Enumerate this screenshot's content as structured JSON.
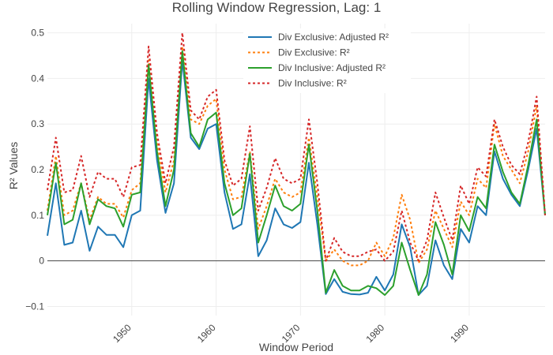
{
  "chart_data": {
    "type": "line",
    "title": "Rolling Window Regression, Lag: 1",
    "xlabel": "Window Period",
    "ylabel": "R² Values",
    "xlim": [
      1940,
      1999
    ],
    "ylim": [
      -0.12,
      0.52
    ],
    "x_ticks": [
      1950,
      1960,
      1970,
      1980,
      1990
    ],
    "x_tick_labels": [
      "1950",
      "1960",
      "1970",
      "1980",
      "1990"
    ],
    "y_ticks": [
      -0.1,
      0,
      0.1,
      0.2,
      0.3,
      0.4,
      0.5
    ],
    "y_tick_labels": [
      "−0.1",
      "0",
      "0.1",
      "0.2",
      "0.3",
      "0.4",
      "0.5"
    ],
    "grid": true,
    "legend_position": "top-right",
    "x": [
      1940,
      1941,
      1942,
      1943,
      1944,
      1945,
      1946,
      1947,
      1948,
      1949,
      1950,
      1951,
      1952,
      1953,
      1954,
      1955,
      1956,
      1957,
      1958,
      1959,
      1960,
      1961,
      1962,
      1963,
      1964,
      1965,
      1966,
      1967,
      1968,
      1969,
      1970,
      1971,
      1972,
      1973,
      1974,
      1975,
      1976,
      1977,
      1978,
      1979,
      1980,
      1981,
      1982,
      1983,
      1984,
      1985,
      1986,
      1987,
      1988,
      1989,
      1990,
      1991,
      1992,
      1993,
      1994,
      1995,
      1996,
      1997,
      1998,
      1999
    ],
    "series": [
      {
        "name": "Div Exclusive: Adjusted R²",
        "color": "#1f77b4",
        "dash": "solid",
        "values": [
          0.055,
          0.17,
          0.035,
          0.04,
          0.11,
          0.022,
          0.075,
          0.057,
          0.057,
          0.03,
          0.1,
          0.11,
          0.4,
          0.22,
          0.105,
          0.17,
          0.44,
          0.27,
          0.245,
          0.29,
          0.3,
          0.15,
          0.07,
          0.08,
          0.19,
          0.01,
          0.045,
          0.115,
          0.08,
          0.072,
          0.085,
          0.215,
          0.08,
          -0.073,
          -0.04,
          -0.068,
          -0.073,
          -0.074,
          -0.07,
          -0.035,
          -0.065,
          -0.03,
          0.08,
          0.03,
          -0.075,
          -0.055,
          0.045,
          -0.01,
          -0.04,
          0.07,
          0.04,
          0.12,
          0.1,
          0.24,
          0.18,
          0.145,
          0.12,
          0.2,
          0.29,
          0.1
        ]
      },
      {
        "name": "Div Exclusive: R²",
        "color": "#ff7f0e",
        "dash": "dot",
        "values": [
          0.11,
          0.23,
          0.1,
          0.11,
          0.17,
          0.09,
          0.14,
          0.125,
          0.125,
          0.095,
          0.155,
          0.17,
          0.44,
          0.26,
          0.15,
          0.22,
          0.47,
          0.31,
          0.3,
          0.34,
          0.355,
          0.2,
          0.135,
          0.14,
          0.24,
          0.07,
          0.12,
          0.18,
          0.15,
          0.14,
          0.15,
          0.27,
          0.14,
          0.0,
          0.025,
          0.0,
          -0.01,
          -0.01,
          0.0,
          0.04,
          0.01,
          0.05,
          0.145,
          0.09,
          -0.005,
          0.025,
          0.11,
          0.07,
          0.03,
          0.13,
          0.1,
          0.18,
          0.16,
          0.3,
          0.23,
          0.2,
          0.17,
          0.24,
          0.34,
          0.1
        ]
      },
      {
        "name": "Div Inclusive: Adjusted R²",
        "color": "#2ca02c",
        "dash": "solid",
        "values": [
          0.1,
          0.215,
          0.08,
          0.09,
          0.17,
          0.08,
          0.135,
          0.12,
          0.115,
          0.075,
          0.145,
          0.15,
          0.43,
          0.24,
          0.12,
          0.2,
          0.46,
          0.28,
          0.25,
          0.31,
          0.325,
          0.17,
          0.1,
          0.115,
          0.235,
          0.04,
          0.1,
          0.165,
          0.12,
          0.11,
          0.125,
          0.255,
          0.11,
          -0.07,
          -0.02,
          -0.055,
          -0.065,
          -0.065,
          -0.055,
          -0.06,
          -0.075,
          -0.055,
          0.04,
          -0.02,
          -0.075,
          -0.03,
          0.085,
          0.035,
          -0.03,
          0.1,
          0.065,
          0.14,
          0.115,
          0.255,
          0.195,
          0.15,
          0.125,
          0.21,
          0.31,
          0.1
        ]
      },
      {
        "name": "Div Inclusive: R²",
        "color": "#d62728",
        "dash": "dot",
        "values": [
          0.155,
          0.27,
          0.15,
          0.155,
          0.23,
          0.14,
          0.195,
          0.18,
          0.18,
          0.14,
          0.205,
          0.21,
          0.47,
          0.28,
          0.17,
          0.25,
          0.5,
          0.33,
          0.31,
          0.36,
          0.375,
          0.22,
          0.165,
          0.18,
          0.295,
          0.11,
          0.16,
          0.225,
          0.18,
          0.17,
          0.18,
          0.31,
          0.17,
          0.0,
          0.05,
          0.02,
          0.01,
          0.01,
          0.02,
          0.025,
          0.0,
          0.02,
          0.11,
          0.04,
          0.0,
          0.045,
          0.15,
          0.095,
          0.045,
          0.165,
          0.125,
          0.205,
          0.185,
          0.31,
          0.25,
          0.21,
          0.19,
          0.26,
          0.36,
          0.1
        ]
      }
    ]
  }
}
